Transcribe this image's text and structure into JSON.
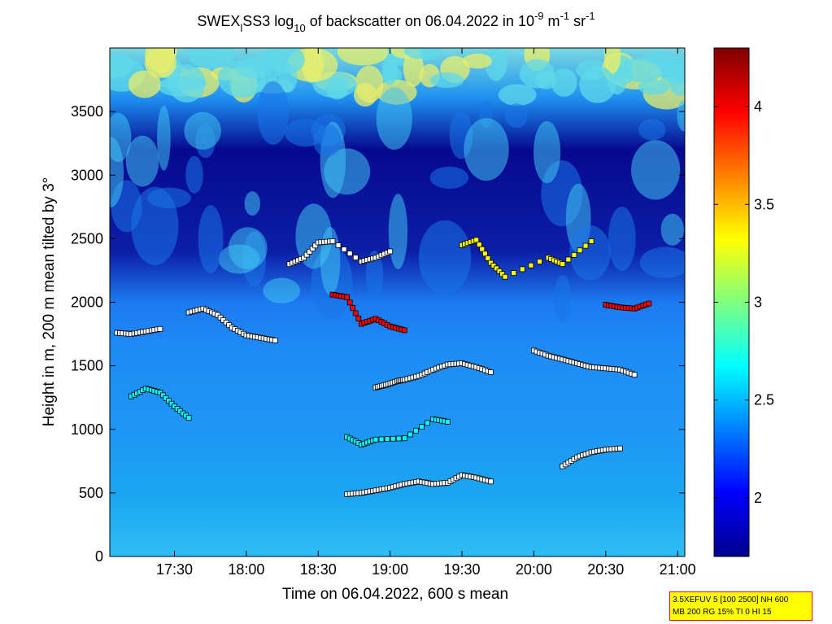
{
  "chart_data": {
    "type": "heatmap",
    "title": {
      "prefix": "SWEX",
      "sub1": "l",
      "mid": "SS3 log",
      "sub2": "10",
      "after": " of backscatter on 06.04.2022 in 10",
      "sup1": "-9",
      "unit1": " m",
      "sup2": "-1",
      "unit2": " sr",
      "sup3": "-1"
    },
    "xlabel": "Time on 06.04.2022, 600 s mean",
    "ylabel": "Height in m, 200 m mean tilted by 3°",
    "x_ticks": [
      "17:30",
      "18:00",
      "18:30",
      "19:00",
      "19:30",
      "20:00",
      "20:30",
      "21:00"
    ],
    "x_tick_hours": [
      17.5,
      18.0,
      18.5,
      19.0,
      19.5,
      20.0,
      20.5,
      21.0
    ],
    "xlim_hours": [
      17.05,
      21.05
    ],
    "y_ticks": [
      0,
      500,
      1000,
      1500,
      2000,
      2500,
      3000,
      3500
    ],
    "ylim": [
      0,
      4000
    ],
    "colorbar": {
      "ticks": [
        "2",
        "2.5",
        "3",
        "3.5",
        "4"
      ],
      "tick_values": [
        2,
        2.5,
        3,
        3.5,
        4
      ],
      "range": [
        1.7,
        4.3
      ],
      "colormap": "jet",
      "colors": [
        "#00008f",
        "#0000ff",
        "#0080ff",
        "#00ffff",
        "#80ff80",
        "#ffff00",
        "#ff8000",
        "#ff0000",
        "#800000"
      ]
    },
    "cloud_layers": [
      {
        "name": "",
        "color": "#ffffff",
        "points": [
          [
            18.9,
            1330
          ],
          [
            18.97,
            1350
          ],
          [
            19.05,
            1380
          ],
          [
            19.1,
            1390
          ],
          [
            19.2,
            1420
          ],
          [
            19.3,
            1470
          ],
          [
            19.4,
            1510
          ],
          [
            19.5,
            1520
          ],
          [
            19.6,
            1490
          ],
          [
            19.7,
            1450
          ]
        ]
      },
      {
        "name": "",
        "color": "#ffffff",
        "points": [
          [
            17.6,
            1920
          ],
          [
            17.7,
            1950
          ],
          [
            17.8,
            1900
          ],
          [
            17.9,
            1800
          ],
          [
            18.0,
            1740
          ],
          [
            18.1,
            1720
          ],
          [
            18.2,
            1700
          ]
        ]
      },
      {
        "name": "",
        "color": "#ffffff",
        "points": [
          [
            18.7,
            490
          ],
          [
            18.8,
            500
          ],
          [
            18.9,
            520
          ],
          [
            19.0,
            540
          ],
          [
            19.1,
            570
          ],
          [
            19.2,
            590
          ],
          [
            19.3,
            570
          ],
          [
            19.4,
            580
          ],
          [
            19.5,
            640
          ],
          [
            19.6,
            620
          ],
          [
            19.7,
            590
          ]
        ]
      },
      {
        "name": "",
        "color": "#ffffff",
        "points": [
          [
            20.2,
            710
          ],
          [
            20.3,
            780
          ],
          [
            20.4,
            820
          ],
          [
            20.5,
            840
          ],
          [
            20.6,
            850
          ]
        ]
      },
      {
        "name": "",
        "color": "#ffffff",
        "points": [
          [
            20.0,
            1620
          ],
          [
            20.1,
            1580
          ],
          [
            20.2,
            1550
          ],
          [
            20.3,
            1520
          ],
          [
            20.4,
            1490
          ],
          [
            20.5,
            1480
          ],
          [
            20.6,
            1470
          ],
          [
            20.7,
            1430
          ]
        ]
      },
      {
        "name": "",
        "color": "#ff0000",
        "points": [
          [
            18.6,
            2060
          ],
          [
            18.7,
            2040
          ],
          [
            18.8,
            1830
          ],
          [
            18.9,
            1870
          ],
          [
            19.0,
            1810
          ],
          [
            19.1,
            1780
          ]
        ]
      },
      {
        "name": "",
        "color": "#ff0000",
        "points": [
          [
            20.5,
            1980
          ],
          [
            20.6,
            1960
          ],
          [
            20.7,
            1950
          ],
          [
            20.8,
            1990
          ]
        ]
      },
      {
        "name": "",
        "color": "#00ffff",
        "points": [
          [
            17.2,
            1260
          ],
          [
            17.3,
            1320
          ],
          [
            17.4,
            1290
          ],
          [
            17.5,
            1180
          ],
          [
            17.6,
            1090
          ]
        ]
      },
      {
        "name": "",
        "color": "#ffff00",
        "points": [
          [
            19.5,
            2450
          ],
          [
            19.6,
            2490
          ],
          [
            19.7,
            2310
          ],
          [
            19.8,
            2200
          ],
          [
            20.1,
            2350
          ],
          [
            20.2,
            2300
          ],
          [
            20.4,
            2480
          ]
        ]
      },
      {
        "name": "",
        "color": "#ffffff",
        "points": [
          [
            18.3,
            2300
          ],
          [
            18.4,
            2350
          ],
          [
            18.5,
            2470
          ],
          [
            18.6,
            2480
          ],
          [
            18.8,
            2320
          ],
          [
            18.9,
            2350
          ],
          [
            19.0,
            2400
          ]
        ]
      },
      {
        "name": "",
        "color": "#ffffff",
        "points": [
          [
            17.1,
            1760
          ],
          [
            17.2,
            1750
          ],
          [
            17.3,
            1770
          ],
          [
            17.4,
            1790
          ]
        ]
      },
      {
        "name": "",
        "color": "#00ffff",
        "points": [
          [
            18.7,
            940
          ],
          [
            18.8,
            880
          ],
          [
            18.9,
            920
          ],
          [
            19.1,
            930
          ],
          [
            19.3,
            1080
          ],
          [
            19.4,
            1060
          ]
        ]
      }
    ]
  },
  "info_box": {
    "line1": "3.5XEFUV 5 [100 2500] NH 600",
    "line2": "MB 200 RG 15% TI 0 HI 15"
  }
}
